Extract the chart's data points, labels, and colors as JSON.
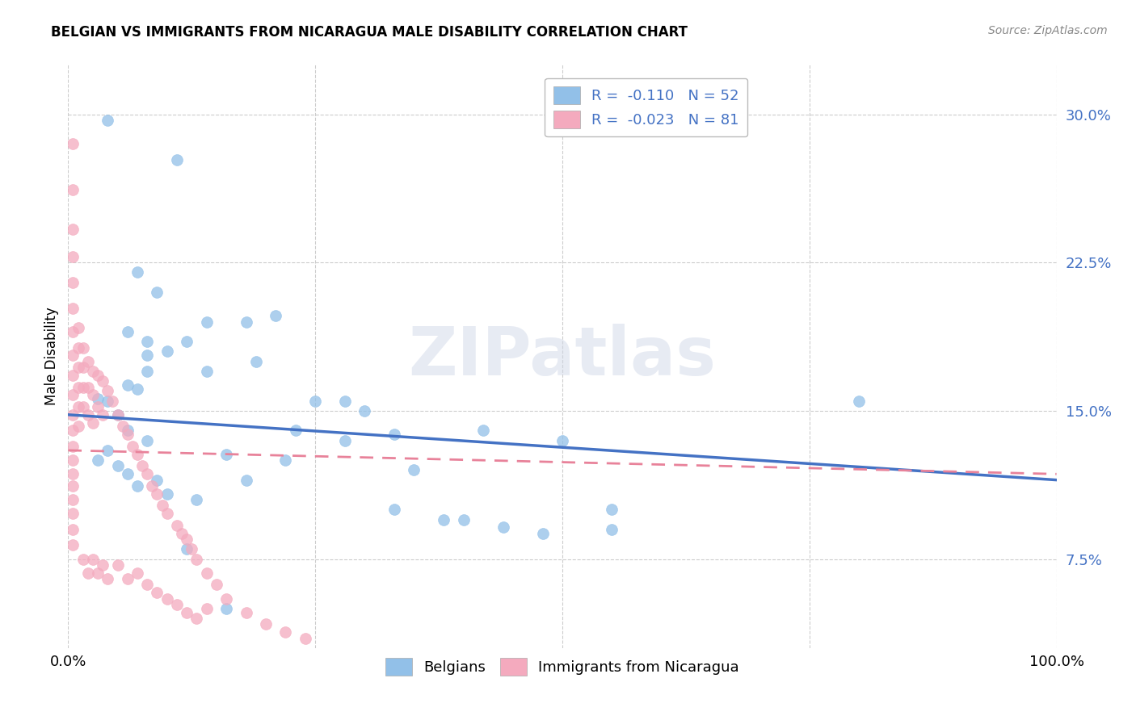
{
  "title": "BELGIAN VS IMMIGRANTS FROM NICARAGUA MALE DISABILITY CORRELATION CHART",
  "source": "Source: ZipAtlas.com",
  "ylabel": "Male Disability",
  "xlim": [
    0,
    1.0
  ],
  "ylim": [
    0.03,
    0.325
  ],
  "yticks": [
    0.075,
    0.15,
    0.225,
    0.3
  ],
  "ytick_labels": [
    "7.5%",
    "15.0%",
    "22.5%",
    "30.0%"
  ],
  "xticks": [
    0.0,
    0.25,
    0.5,
    0.75,
    1.0
  ],
  "xtick_labels": [
    "0.0%",
    "",
    "",
    "",
    "100.0%"
  ],
  "legend_r_blue": "-0.110",
  "legend_n_blue": "52",
  "legend_r_pink": "-0.023",
  "legend_n_pink": "81",
  "blue_color": "#92C0E8",
  "pink_color": "#F4AABE",
  "blue_line_color": "#4472C4",
  "pink_line_color": "#E8829A",
  "legend_text_color": "#4472C4",
  "watermark": "ZIPatlas",
  "blue_line_x0": 0.0,
  "blue_line_y0": 0.148,
  "blue_line_x1": 1.0,
  "blue_line_y1": 0.115,
  "pink_line_x0": 0.0,
  "pink_line_y0": 0.13,
  "pink_line_x1": 1.0,
  "pink_line_y1": 0.118,
  "blue_x": [
    0.04,
    0.11,
    0.21,
    0.04,
    0.06,
    0.03,
    0.05,
    0.07,
    0.08,
    0.12,
    0.08,
    0.14,
    0.19,
    0.06,
    0.08,
    0.04,
    0.03,
    0.05,
    0.06,
    0.09,
    0.07,
    0.1,
    0.13,
    0.16,
    0.23,
    0.28,
    0.33,
    0.38,
    0.42,
    0.5,
    0.55,
    0.28,
    0.33,
    0.22,
    0.18,
    0.35,
    0.4,
    0.44,
    0.48,
    0.55,
    0.8,
    0.14,
    0.18,
    0.06,
    0.08,
    0.1,
    0.25,
    0.3,
    0.12,
    0.16,
    0.07,
    0.09
  ],
  "blue_y": [
    0.297,
    0.277,
    0.198,
    0.155,
    0.163,
    0.156,
    0.148,
    0.161,
    0.17,
    0.185,
    0.178,
    0.17,
    0.175,
    0.14,
    0.135,
    0.13,
    0.125,
    0.122,
    0.118,
    0.115,
    0.112,
    0.108,
    0.105,
    0.128,
    0.14,
    0.135,
    0.1,
    0.095,
    0.14,
    0.135,
    0.1,
    0.155,
    0.138,
    0.125,
    0.115,
    0.12,
    0.095,
    0.091,
    0.088,
    0.09,
    0.155,
    0.195,
    0.195,
    0.19,
    0.185,
    0.18,
    0.155,
    0.15,
    0.08,
    0.05,
    0.22,
    0.21
  ],
  "pink_x": [
    0.005,
    0.005,
    0.005,
    0.005,
    0.005,
    0.005,
    0.005,
    0.005,
    0.005,
    0.005,
    0.005,
    0.005,
    0.005,
    0.005,
    0.005,
    0.005,
    0.005,
    0.005,
    0.005,
    0.005,
    0.01,
    0.01,
    0.01,
    0.01,
    0.01,
    0.01,
    0.015,
    0.015,
    0.015,
    0.015,
    0.02,
    0.02,
    0.02,
    0.025,
    0.025,
    0.025,
    0.03,
    0.03,
    0.035,
    0.035,
    0.04,
    0.045,
    0.05,
    0.055,
    0.06,
    0.065,
    0.07,
    0.075,
    0.08,
    0.085,
    0.09,
    0.095,
    0.1,
    0.11,
    0.115,
    0.12,
    0.125,
    0.13,
    0.14,
    0.15,
    0.16,
    0.18,
    0.2,
    0.22,
    0.24,
    0.015,
    0.02,
    0.025,
    0.03,
    0.035,
    0.04,
    0.05,
    0.06,
    0.07,
    0.08,
    0.09,
    0.1,
    0.11,
    0.12,
    0.13,
    0.14
  ],
  "pink_y": [
    0.285,
    0.262,
    0.242,
    0.228,
    0.215,
    0.202,
    0.19,
    0.178,
    0.168,
    0.158,
    0.148,
    0.14,
    0.132,
    0.125,
    0.118,
    0.112,
    0.105,
    0.098,
    0.09,
    0.082,
    0.192,
    0.182,
    0.172,
    0.162,
    0.152,
    0.142,
    0.182,
    0.172,
    0.162,
    0.152,
    0.175,
    0.162,
    0.148,
    0.17,
    0.158,
    0.144,
    0.168,
    0.152,
    0.165,
    0.148,
    0.16,
    0.155,
    0.148,
    0.142,
    0.138,
    0.132,
    0.128,
    0.122,
    0.118,
    0.112,
    0.108,
    0.102,
    0.098,
    0.092,
    0.088,
    0.085,
    0.08,
    0.075,
    0.068,
    0.062,
    0.055,
    0.048,
    0.042,
    0.038,
    0.035,
    0.075,
    0.068,
    0.075,
    0.068,
    0.072,
    0.065,
    0.072,
    0.065,
    0.068,
    0.062,
    0.058,
    0.055,
    0.052,
    0.048,
    0.045,
    0.05
  ]
}
